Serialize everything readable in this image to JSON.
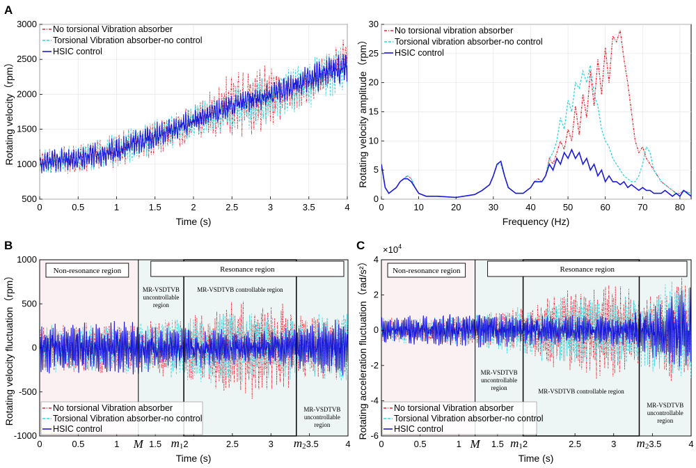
{
  "colors": {
    "red": "#e8232c",
    "cyan": "#2fd6e0",
    "blue": "#1a1ad8"
  },
  "chart_data": [
    {
      "id": "A1",
      "panel_letter": "A",
      "type": "line",
      "xlabel": "Time (s)",
      "ylabel": "Rotating velocity（rpm）",
      "xlim": [
        0,
        4
      ],
      "ylim": [
        500,
        3000
      ],
      "xticks": [
        0,
        0.5,
        1,
        1.5,
        2,
        2.5,
        3,
        3.5,
        4
      ],
      "xtick_labels": [
        "0",
        "0.5",
        "1",
        "1.5",
        "2",
        "2.5",
        "3",
        "3.5",
        "4"
      ],
      "yticks": [
        500,
        1000,
        1500,
        2000,
        2500,
        3000
      ],
      "ytick_labels": [
        "500",
        "1000",
        "1500",
        "2000",
        "2500",
        "3000"
      ],
      "legend": [
        "No torsional Vibration absorber",
        "Torsional Vibration absorber-no control",
        "HSIC control"
      ],
      "series": [
        {
          "name": "No torsional Vibration absorber",
          "color": "red",
          "style": "dash-dot",
          "envelope": {
            "x": [
              0,
              0.5,
              1,
              1.5,
              2,
              2.4,
              2.6,
              2.8,
              3,
              3.2,
              3.6,
              4
            ],
            "low": [
              800,
              850,
              950,
              1100,
              1300,
              1350,
              1350,
              1400,
              1500,
              1700,
              1900,
              2300
            ],
            "high": [
              1250,
              1300,
              1450,
              1650,
              1900,
              2250,
              2400,
              2450,
              2450,
              2300,
              2500,
              2850
            ]
          }
        },
        {
          "name": "Torsional Vibration absorber-no control",
          "color": "cyan",
          "style": "dashed",
          "envelope": {
            "x": [
              0,
              0.5,
              1,
              1.5,
              2,
              2.5,
              3,
              3.5,
              4
            ],
            "low": [
              800,
              850,
              950,
              1100,
              1350,
              1450,
              1550,
              1800,
              2000
            ],
            "high": [
              1250,
              1300,
              1450,
              1650,
              1850,
              2100,
              2300,
              2500,
              2800
            ]
          }
        },
        {
          "name": "HSIC control",
          "color": "blue",
          "style": "solid",
          "envelope": {
            "x": [
              0,
              0.5,
              1,
              1.5,
              2,
              2.5,
              3,
              3.5,
              4
            ],
            "low": [
              850,
              900,
              1000,
              1200,
              1450,
              1650,
              1800,
              2000,
              2150
            ],
            "high": [
              1200,
              1250,
              1400,
              1600,
              1800,
              2000,
              2200,
              2450,
              2650
            ]
          }
        }
      ]
    },
    {
      "id": "A2",
      "type": "line",
      "xlabel": "Frequency (Hz)",
      "ylabel": "Rotating velocity amplitude（rpm）",
      "xlim": [
        0,
        83
      ],
      "ylim": [
        0,
        30
      ],
      "xticks": [
        0,
        10,
        20,
        30,
        40,
        50,
        60,
        70,
        80
      ],
      "xtick_labels": [
        "0",
        "10",
        "20",
        "30",
        "40",
        "50",
        "60",
        "70",
        "80"
      ],
      "yticks": [
        0,
        5,
        10,
        15,
        20,
        25,
        30
      ],
      "ytick_labels": [
        "0",
        "5",
        "10",
        "15",
        "20",
        "25",
        "30"
      ],
      "legend": [
        "No torsional vibration absorber",
        "Torsional vibration absorber-no control",
        "HSIC control"
      ],
      "series": [
        {
          "name": "No torsional vibration absorber",
          "color": "red",
          "style": "dash-dot",
          "x": [
            0,
            1,
            2,
            3,
            4,
            5,
            6,
            7,
            8,
            9,
            10,
            12,
            15,
            20,
            25,
            27,
            29,
            30,
            31,
            32,
            33,
            34,
            36,
            38,
            40,
            41,
            42,
            43,
            44,
            45,
            46,
            47,
            48,
            49,
            50,
            51,
            52,
            53,
            54,
            55,
            56,
            57,
            58,
            59,
            60,
            61,
            62,
            63,
            64,
            65,
            66,
            67,
            68,
            69,
            70,
            71,
            72,
            73,
            74,
            75,
            76,
            77,
            78,
            79,
            80,
            81,
            82,
            83
          ],
          "y": [
            6,
            2,
            1,
            1.5,
            2,
            3,
            3.5,
            4,
            3.5,
            2,
            1,
            0.5,
            0.5,
            0.3,
            0.8,
            1.5,
            2.5,
            4,
            6,
            6.5,
            4,
            2,
            1,
            1,
            2,
            3,
            3.5,
            3,
            4,
            7,
            6,
            8,
            10,
            8.5,
            12,
            10,
            16,
            11,
            18,
            14,
            22,
            16,
            24,
            18,
            26,
            20,
            28,
            27,
            29,
            24,
            20,
            15,
            10,
            8,
            9,
            7,
            6,
            5,
            4,
            3,
            2.5,
            2,
            1.5,
            1,
            1,
            1.5,
            1.2,
            1
          ]
        },
        {
          "name": "Torsional vibration absorber-no control",
          "color": "cyan",
          "style": "dashed",
          "x": [
            0,
            1,
            2,
            3,
            4,
            5,
            6,
            7,
            8,
            9,
            10,
            12,
            15,
            20,
            25,
            27,
            29,
            30,
            31,
            32,
            33,
            34,
            36,
            38,
            40,
            41,
            42,
            43,
            44,
            45,
            46,
            47,
            48,
            49,
            50,
            51,
            52,
            53,
            54,
            55,
            56,
            57,
            58,
            59,
            60,
            61,
            62,
            63,
            64,
            65,
            66,
            67,
            68,
            69,
            70,
            71,
            72,
            73,
            74,
            75,
            76,
            77,
            78,
            79,
            80,
            81,
            82,
            83
          ],
          "y": [
            6,
            2,
            1,
            1.5,
            2,
            3,
            3.5,
            4,
            3.5,
            2,
            1,
            0.5,
            0.5,
            0.3,
            0.8,
            1.5,
            2.5,
            4,
            6,
            6,
            4,
            2,
            1,
            1,
            2,
            3,
            3,
            3,
            4,
            7,
            8,
            10,
            14,
            12,
            17,
            15,
            20,
            19,
            22,
            20,
            23,
            18,
            16,
            12,
            10,
            9,
            7,
            6,
            5,
            4,
            3.5,
            3,
            3,
            4,
            6,
            9,
            8,
            5,
            4,
            3,
            2.5,
            2,
            1.5,
            1,
            1,
            1.5,
            1.2,
            1
          ]
        },
        {
          "name": "HSIC control",
          "color": "blue",
          "style": "solid",
          "x": [
            0,
            1,
            2,
            3,
            4,
            5,
            6,
            7,
            8,
            9,
            10,
            12,
            15,
            20,
            25,
            27,
            29,
            30,
            31,
            32,
            33,
            34,
            36,
            38,
            40,
            41,
            42,
            43,
            44,
            45,
            46,
            47,
            48,
            49,
            50,
            51,
            52,
            53,
            54,
            55,
            56,
            57,
            58,
            59,
            60,
            61,
            62,
            63,
            64,
            65,
            66,
            67,
            68,
            69,
            70,
            71,
            72,
            73,
            74,
            75,
            76,
            77,
            78,
            79,
            80,
            81,
            82,
            83
          ],
          "y": [
            6,
            2,
            1,
            1.5,
            2,
            3,
            3.5,
            3.5,
            3,
            2,
            1,
            0.5,
            0.5,
            0.3,
            0.8,
            1.5,
            2.5,
            4,
            6,
            6.5,
            4,
            2,
            1,
            1,
            2,
            3,
            3,
            3,
            4,
            6,
            5,
            7,
            6,
            8,
            7,
            8.5,
            7,
            8,
            6,
            7,
            5,
            6,
            4,
            5,
            3,
            4,
            3,
            3,
            2.5,
            3,
            2,
            2.5,
            2,
            1.5,
            2,
            1.5,
            1.5,
            1,
            1,
            1,
            1.5,
            1,
            0.5,
            1,
            0.5,
            1.5,
            1,
            0.5
          ]
        }
      ]
    },
    {
      "id": "B",
      "panel_letter": "B",
      "type": "line",
      "xlabel": "Time (s)",
      "ylabel": "Rotating velocity fluctuation（rpm）",
      "xlim": [
        0,
        4
      ],
      "ylim": [
        -1000,
        1000
      ],
      "xticks": [
        0,
        0.5,
        1,
        1.5,
        2,
        2.5,
        3,
        3.5,
        4
      ],
      "xtick_labels": [
        "0",
        "0.5",
        "1",
        "",
        "",
        "2.5",
        "3",
        "",
        "4"
      ],
      "extra_xlabels": {
        "M": "M",
        "m1": "m",
        "m1_sub": "1",
        "m1_rest": "2",
        "m2": "m",
        "m2_sub": "2",
        "m2_rest": "3.5",
        "t15": "1.5"
      },
      "yticks": [
        -1000,
        -500,
        0,
        500,
        1000
      ],
      "ytick_labels": [
        "-1000",
        "-500",
        "0",
        "500",
        "1000"
      ],
      "markers": {
        "M": 1.28,
        "m1": 1.87,
        "m2": 3.33
      },
      "regions": {
        "non_resonance": "Non-resonance region",
        "resonance": "Resonance region",
        "controllable": "MR-VSDTVB controllable region",
        "uncontrollable_l1": "MR-VSDTVB",
        "uncontrollable_l2": "uncontrollable",
        "uncontrollable_l3": "region"
      },
      "legend": [
        "No torsional Vibration absorber",
        "Torsional Vibration absorber-no control",
        "HSIC control"
      ],
      "series": [
        {
          "name": "No torsional Vibration absorber",
          "color": "red",
          "style": "dash-dot",
          "envelope": {
            "x": [
              0,
              1.3,
              1.9,
              2.3,
              2.6,
              2.85,
              3.1,
              3.35,
              4
            ],
            "amp": [
              280,
              300,
              350,
              480,
              560,
              600,
              560,
              400,
              380
            ]
          }
        },
        {
          "name": "Torsional Vibration absorber-no control",
          "color": "cyan",
          "style": "dashed",
          "envelope": {
            "x": [
              0,
              1.3,
              1.9,
              2.3,
              2.6,
              2.85,
              3.1,
              3.35,
              4
            ],
            "amp": [
              280,
              300,
              380,
              420,
              420,
              400,
              380,
              380,
              420
            ]
          }
        },
        {
          "name": "HSIC control",
          "color": "blue",
          "style": "solid",
          "envelope": {
            "x": [
              0,
              1.3,
              1.9,
              2.3,
              2.6,
              2.85,
              3.1,
              3.35,
              4
            ],
            "amp": [
              300,
              320,
              250,
              220,
              200,
              200,
              210,
              250,
              380
            ]
          }
        }
      ]
    },
    {
      "id": "C",
      "panel_letter": "C",
      "type": "line",
      "xlabel": "Time (s)",
      "ylabel": "Rotating acceleration fluctuation（rad/s²）",
      "exponent_label": "×10",
      "exponent_power": "4",
      "xlim": [
        0,
        4
      ],
      "ylim": [
        -6,
        4
      ],
      "xticks": [
        0,
        0.5,
        1,
        1.5,
        2,
        2.5,
        3,
        3.5,
        4
      ],
      "xtick_labels": [
        "0",
        "0.5",
        "1",
        "",
        "",
        "2.5",
        "3",
        "",
        "4"
      ],
      "extra_xlabels": {
        "M": "M",
        "m1": "m",
        "m1_sub": "1",
        "m1_rest": "2",
        "m2": "m",
        "m2_sub": "2",
        "m2_rest": "3.5",
        "t15": "1.5"
      },
      "yticks": [
        -6,
        -4,
        -2,
        0,
        2,
        4
      ],
      "ytick_labels": [
        "-6",
        "-4",
        "-2",
        "0",
        "2",
        "4"
      ],
      "markers": {
        "M": 1.21,
        "m1": 1.83,
        "m2": 3.33
      },
      "regions": {
        "non_resonance": "Non-resonance region",
        "resonance": "Resonance region",
        "controllable": "MR-VSDTVB controllable region",
        "uncontrollable_l1": "MR-VSDTVB",
        "uncontrollable_l2": "uncontrollable",
        "uncontrollable_l3": "region"
      },
      "legend": [
        "No torsional Vibration absorber",
        "Torsional Vibration absorber-no control",
        "HSIC control"
      ],
      "series": [
        {
          "name": "No torsional Vibration absorber",
          "color": "red",
          "style": "dash-dot",
          "envelope": {
            "x": [
              0,
              1.2,
              1.85,
              2.2,
              2.6,
              2.9,
              3.2,
              3.4,
              3.7,
              4
            ],
            "amp": [
              0.7,
              0.9,
              1.5,
              2.3,
              2.8,
              2.8,
              2.5,
              1.9,
              3,
              3.2
            ]
          }
        },
        {
          "name": "Torsional Vibration absorber-no control",
          "color": "cyan",
          "style": "dashed",
          "envelope": {
            "x": [
              0,
              1.2,
              1.85,
              2.2,
              2.6,
              2.9,
              3.2,
              3.4,
              3.7,
              4
            ],
            "amp": [
              0.7,
              0.9,
              1.6,
              2,
              2,
              1.9,
              2.1,
              2.2,
              2.8,
              3
            ]
          }
        },
        {
          "name": "HSIC control",
          "color": "blue",
          "style": "solid",
          "envelope": {
            "x": [
              0,
              1.2,
              1.85,
              2.2,
              2.6,
              2.9,
              3.2,
              3.4,
              3.7,
              4
            ],
            "amp": [
              0.8,
              1,
              0.9,
              0.9,
              0.9,
              0.9,
              1,
              1.3,
              2.2,
              2.6
            ]
          }
        }
      ]
    }
  ]
}
